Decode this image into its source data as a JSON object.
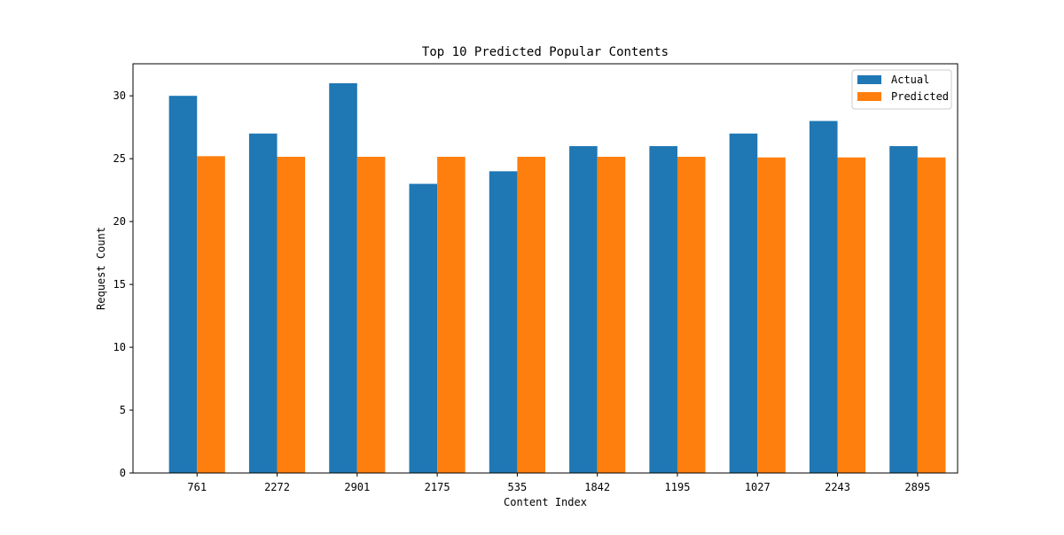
{
  "chart_data": {
    "type": "bar",
    "title": "Top 10 Predicted Popular Contents",
    "xlabel": "Content Index",
    "ylabel": "Request Count",
    "categories": [
      "761",
      "2272",
      "2901",
      "2175",
      "535",
      "1842",
      "1195",
      "1027",
      "2243",
      "2895"
    ],
    "series": [
      {
        "name": "Actual",
        "color": "#1f77b4",
        "values": [
          30,
          27,
          31,
          23,
          24,
          26,
          26,
          27,
          28,
          26
        ]
      },
      {
        "name": "Predicted",
        "color": "#ff7f0e",
        "values": [
          25.2,
          25.15,
          25.15,
          25.15,
          25.15,
          25.15,
          25.15,
          25.1,
          25.1,
          25.1
        ]
      }
    ],
    "ylim": [
      0,
      32.55
    ],
    "yticks": [
      0,
      5,
      10,
      15,
      20,
      25,
      30
    ],
    "grid": false,
    "legend_position": "top-right"
  }
}
